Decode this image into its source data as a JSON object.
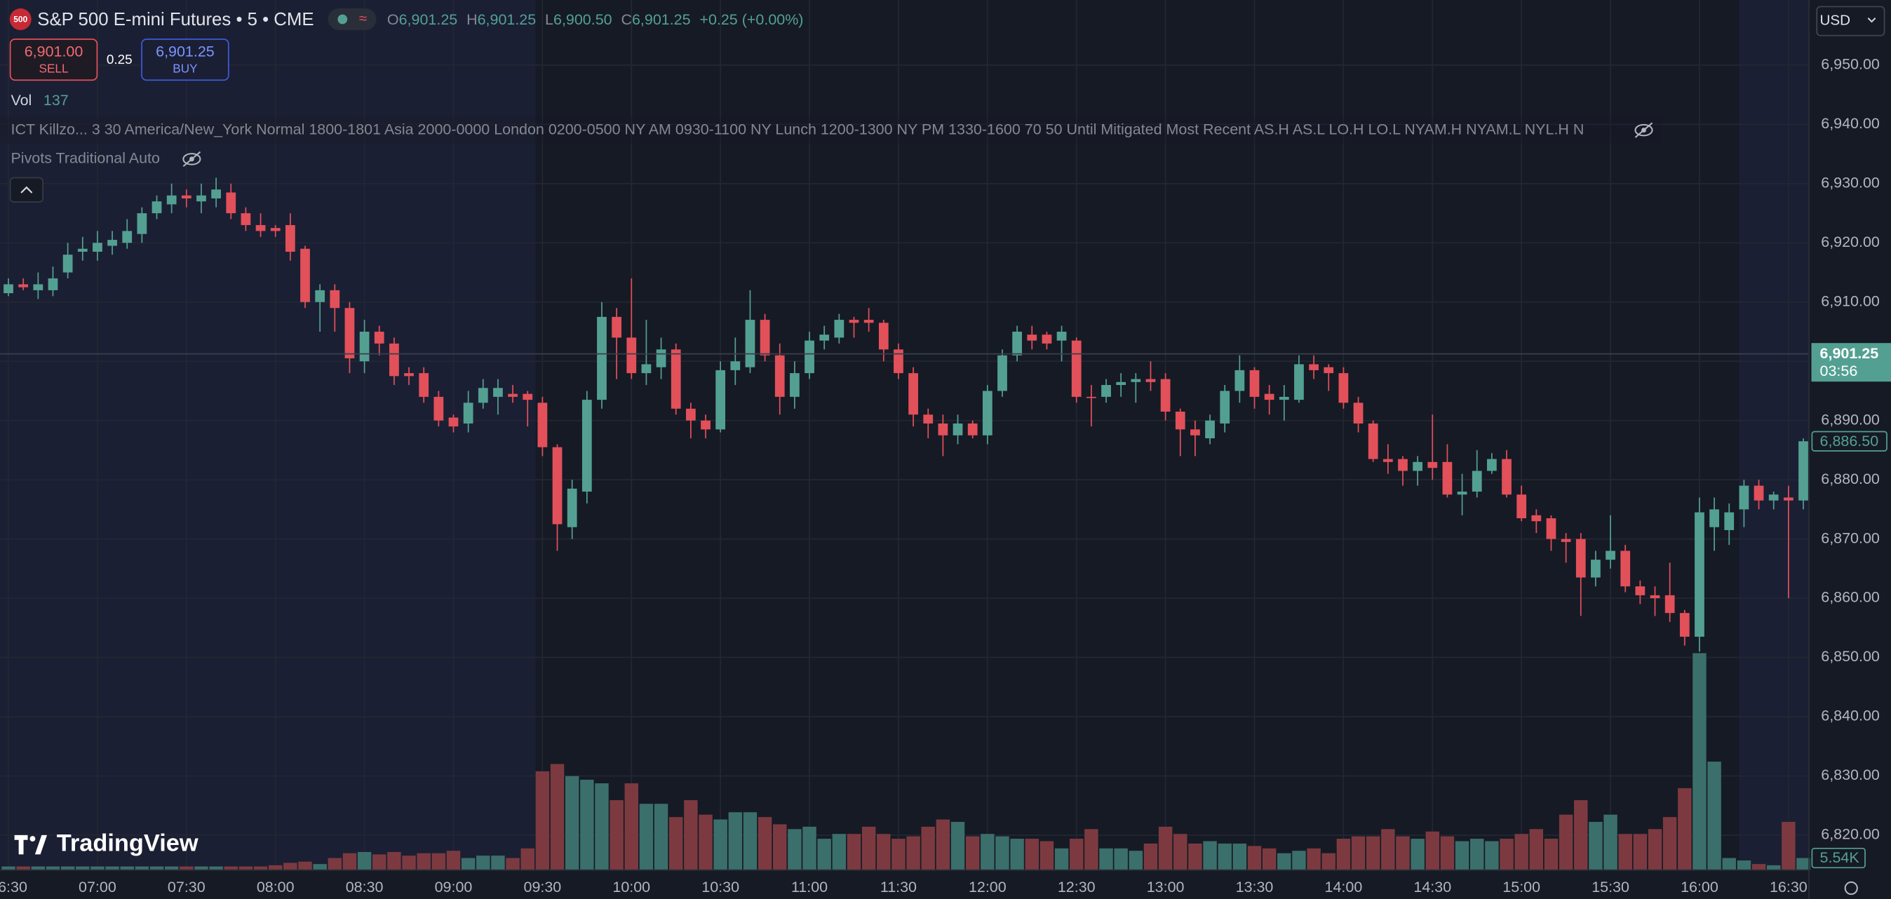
{
  "header": {
    "badge": "500",
    "title": "S&P 500 E-mini Futures • 5 • CME",
    "ohlc": [
      {
        "key": "O",
        "value": "6,901.25"
      },
      {
        "key": "H",
        "value": "6,901.25"
      },
      {
        "key": "L",
        "value": "6,900.50"
      },
      {
        "key": "C",
        "value": "6,901.25"
      }
    ],
    "change": "+0.25 (+0.00%)"
  },
  "trade": {
    "sell_price": "6,901.00",
    "sell_label": "SELL",
    "spread": "0.25",
    "buy_price": "6,901.25",
    "buy_label": "BUY"
  },
  "indicators": {
    "vol_label": "Vol",
    "vol_value": "137",
    "killzones": "ICT Killzo... 3 30 America/New_York Normal 1800-1801 Asia 2000-0000 London 0200-0500 NY AM 0930-1100 NY Lunch 1200-1300 NY PM 1330-1600 70 50 Until Mitigated Most Recent AS.H AS.L LO.H LO.L NYAM.H NYAM.L NYL.H N",
    "pivots": "Pivots Traditional Auto"
  },
  "currency": "USD",
  "logo": "TradingView",
  "chart_data": {
    "type": "candlestick",
    "categories": [
      "06:30",
      null,
      null,
      null,
      null,
      null,
      "07:00",
      null,
      null,
      null,
      null,
      null,
      "07:30",
      null,
      null,
      null,
      null,
      null,
      "08:00",
      null,
      null,
      null,
      null,
      null,
      "08:30",
      null,
      null,
      null,
      null,
      null,
      "09:00",
      null,
      null,
      null,
      null,
      null,
      "09:30",
      null,
      null,
      null,
      null,
      null,
      "10:00",
      null,
      null,
      null,
      null,
      null,
      "10:30",
      null,
      null,
      null,
      null,
      null,
      "11:00",
      null,
      null,
      null,
      null,
      null,
      "11:30",
      null,
      null,
      null,
      null,
      null,
      "12:00",
      null,
      null,
      null,
      null,
      null,
      "12:30",
      null,
      null,
      null,
      null,
      null,
      "13:00",
      null,
      null,
      null,
      null,
      null,
      "13:30",
      null,
      null,
      null,
      null,
      null,
      "14:00",
      null,
      null,
      null,
      null,
      null,
      "14:30",
      null,
      null,
      null,
      null,
      null,
      "15:00",
      null,
      null,
      null,
      null,
      null,
      "15:30",
      null,
      null,
      null,
      null,
      null,
      "16:00",
      null,
      null,
      null,
      null,
      null,
      "16:30",
      null
    ],
    "open": [
      6911.5,
      6913,
      6912,
      6912,
      6915,
      6918.5,
      6918.5,
      6919.5,
      6920,
      6921.5,
      6925,
      6926.5,
      6928,
      6927,
      6927.5,
      6928.5,
      6925,
      6923,
      6922.5,
      6923,
      6919,
      6910,
      6912,
      6909,
      6900,
      6905,
      6903,
      6898,
      6898,
      6894,
      6890.5,
      6889.5,
      6893,
      6894,
      6894.5,
      6894.5,
      6893,
      6885.5,
      6872,
      6878,
      6893.5,
      6907.5,
      6904,
      6898,
      6899,
      6902,
      6892,
      6890,
      6888.5,
      6898.5,
      6899,
      6907,
      6901,
      6894,
      6898,
      6903.5,
      6904,
      6907,
      6907,
      6906.5,
      6902,
      6898,
      6891,
      6889.5,
      6887.5,
      6889.5,
      6887.5,
      6895,
      6901,
      6904.5,
      6904.5,
      6903.5,
      6903.5,
      6894,
      6894,
      6896,
      6896.5,
      6897,
      6897,
      6891.5,
      6888.5,
      6887,
      6889.5,
      6895,
      6898.5,
      6894.5,
      6893.5,
      6893.5,
      6899.5,
      6899,
      6898,
      6893,
      6889.5,
      6883.5,
      6883.5,
      6881.5,
      6883,
      6883,
      6877.5,
      6878,
      6881.5,
      6883.5,
      6877.5,
      6874,
      6873.5,
      6870,
      6870,
      6863.5,
      6866.5,
      6868,
      6862,
      6860.5,
      6860.5,
      6857.5,
      6853.5,
      6872,
      6871.5,
      6875,
      6879,
      6876.5,
      6877,
      6876.5
    ],
    "high": [
      6914,
      6914,
      6915,
      6916,
      6920,
      6921,
      6922,
      6922,
      6924,
      6926,
      6928,
      6930,
      6929,
      6930,
      6931,
      6930,
      6926,
      6925,
      6923,
      6925,
      6919.5,
      6913,
      6913,
      6910,
      6907,
      6906,
      6904,
      6899,
      6899,
      6895,
      6891,
      6895,
      6897,
      6897,
      6896,
      6895,
      6894,
      6886,
      6880,
      6895,
      6910,
      6909,
      6914,
      6907,
      6904,
      6903,
      6893,
      6891,
      6900,
      6904,
      6912,
      6908,
      6903,
      6900,
      6905,
      6906,
      6908,
      6907.5,
      6909,
      6907,
      6903,
      6899,
      6892,
      6891,
      6891,
      6890,
      6896,
      6902,
      6906,
      6906,
      6905,
      6906,
      6904,
      6896,
      6897,
      6898,
      6898,
      6900,
      6898,
      6892,
      6890,
      6891,
      6896,
      6901,
      6899,
      6896,
      6896,
      6901,
      6901,
      6899.5,
      6899,
      6894,
      6890,
      6886,
      6884,
      6884,
      6891,
      6886,
      6881,
      6885,
      6884.5,
      6885,
      6879,
      6875,
      6874,
      6871,
      6871,
      6868,
      6874,
      6869,
      6863,
      6862,
      6866,
      6858,
      6877,
      6877,
      6876,
      6880,
      6880,
      6878,
      6879,
      6887
    ],
    "low": [
      6911,
      6912,
      6910.5,
      6911,
      6914,
      6917,
      6917,
      6918,
      6919,
      6920,
      6924,
      6925,
      6926,
      6925,
      6926,
      6924,
      6922,
      6921,
      6921,
      6917,
      6909,
      6905,
      6905,
      6898,
      6898,
      6901,
      6896,
      6896,
      6893,
      6889,
      6888,
      6888,
      6892,
      6891,
      6893,
      6889,
      6884,
      6868,
      6870,
      6876,
      6892,
      6897,
      6897,
      6896,
      6897,
      6891,
      6887,
      6887,
      6888,
      6896,
      6898,
      6900,
      6891,
      6892,
      6897,
      6902,
      6903,
      6904,
      6905,
      6900,
      6897,
      6889,
      6887,
      6884,
      6886,
      6887,
      6886,
      6894,
      6900,
      6902,
      6902,
      6900,
      6893,
      6889,
      6893,
      6894,
      6893,
      6895,
      6890,
      6884,
      6884,
      6886,
      6888,
      6893,
      6892,
      6891,
      6890,
      6893,
      6897,
      6895,
      6892,
      6888,
      6883,
      6881,
      6879,
      6879,
      6880,
      6877,
      6874,
      6877,
      6881,
      6877,
      6873,
      6871,
      6868,
      6866,
      6857,
      6862,
      6865,
      6861,
      6859,
      6857,
      6856,
      6852,
      6851,
      6868,
      6869,
      6872,
      6875,
      6875,
      6860,
      6875
    ],
    "close": [
      6913,
      6912.5,
      6913,
      6914,
      6918,
      6919,
      6920,
      6920.5,
      6922,
      6925,
      6927,
      6928,
      6927.5,
      6928,
      6929,
      6925,
      6923,
      6922,
      6922,
      6918.5,
      6910,
      6912,
      6909,
      6900.5,
      6905,
      6903,
      6897.5,
      6897.5,
      6894,
      6890,
      6889,
      6893,
      6895.5,
      6895.5,
      6894,
      6893.5,
      6885.5,
      6872.5,
      6878.5,
      6893.5,
      6907.5,
      6904,
      6898,
      6899.5,
      6902,
      6892,
      6890,
      6888.5,
      6898.5,
      6900,
      6907,
      6901,
      6894,
      6898,
      6903.5,
      6904.5,
      6907,
      6906.5,
      6906.5,
      6902,
      6898,
      6891,
      6889.5,
      6887.5,
      6889.5,
      6887.5,
      6895,
      6901,
      6905,
      6903.5,
      6903,
      6905,
      6894,
      6893.8,
      6896,
      6896.5,
      6897,
      6896.5,
      6891.5,
      6888.5,
      6887.5,
      6890,
      6895,
      6898.5,
      6894,
      6893.5,
      6894,
      6899.5,
      6898.5,
      6898,
      6893,
      6889.5,
      6883.5,
      6883,
      6881.5,
      6883,
      6882,
      6877.5,
      6878,
      6881.5,
      6883.5,
      6877.5,
      6873.5,
      6873,
      6870,
      6869.5,
      6863.5,
      6866.5,
      6868,
      6862,
      6860.5,
      6860,
      6857.5,
      6853.5,
      6874.5,
      6875,
      6874.5,
      6879,
      6876.5,
      6877.5,
      6876.5,
      6886.5
    ],
    "volume": [
      1662,
      1662,
      1662,
      1662,
      1662,
      1662,
      1662,
      1662,
      1662,
      1662,
      1662,
      1662,
      1662,
      1662,
      1662,
      1662,
      1662,
      1662,
      2216,
      3324,
      3878,
      2770,
      5540,
      7756,
      8310,
      7202,
      8310,
      6648,
      7756,
      7756,
      8864,
      5540,
      6648,
      6648,
      5540,
      9972,
      45428,
      48752,
      43212,
      41550,
      39888,
      32132,
      39888,
      30470,
      30470,
      24376,
      32132,
      25484,
      23268,
      26592,
      26592,
      24376,
      21052,
      18836,
      19944,
      14404,
      16620,
      16620,
      19944,
      16620,
      14404,
      15512,
      19944,
      23268,
      22160,
      15512,
      16620,
      15512,
      14404,
      14404,
      13296,
      9972,
      14404,
      18836,
      9972,
      9972,
      8864,
      12188,
      19944,
      16620,
      12188,
      13296,
      12188,
      12188,
      11080,
      9972,
      7756,
      8864,
      9972,
      7756,
      14404,
      15512,
      15512,
      18836,
      15512,
      14404,
      17728,
      15512,
      13296,
      14404,
      13296,
      14404,
      16620,
      18836,
      14404,
      25484,
      32132,
      22160,
      25484,
      16620,
      16620,
      18836,
      24376,
      37672,
      99720,
      49860,
      5540,
      4432,
      2770,
      2216,
      22160,
      5540
    ],
    "up_color": "#53a092",
    "down_color": "#e2505a",
    "volume_up_color": "#3b6f6b",
    "volume_down_color": "#7c3a40",
    "ylim": [
      6814.1,
      6961.0
    ],
    "yticks": [
      {
        "value": 6820,
        "label": "6,820.00"
      },
      {
        "value": 6830,
        "label": "6,830.00"
      },
      {
        "value": 6840,
        "label": "6,840.00"
      },
      {
        "value": 6850,
        "label": "6,850.00"
      },
      {
        "value": 6860,
        "label": "6,860.00"
      },
      {
        "value": 6870,
        "label": "6,870.00"
      },
      {
        "value": 6880,
        "label": "6,880.00"
      },
      {
        "value": 6890,
        "label": "6,890.00"
      },
      {
        "value": 6900,
        "label": "6,900.00"
      },
      {
        "value": 6910,
        "label": "6,910.00"
      },
      {
        "value": 6920,
        "label": "6,920.00"
      },
      {
        "value": 6930,
        "label": "6,930.00"
      },
      {
        "value": 6940,
        "label": "6,940.00"
      },
      {
        "value": 6950,
        "label": "6,950.00"
      }
    ],
    "grid": true,
    "last_price": {
      "value": 6901.25,
      "label": "6,901.25",
      "countdown": "03:56"
    },
    "price_marker": {
      "value": 6886.5,
      "label": "6,886.50"
    },
    "volume_marker": {
      "value": 5540,
      "label": "5.54K"
    }
  }
}
